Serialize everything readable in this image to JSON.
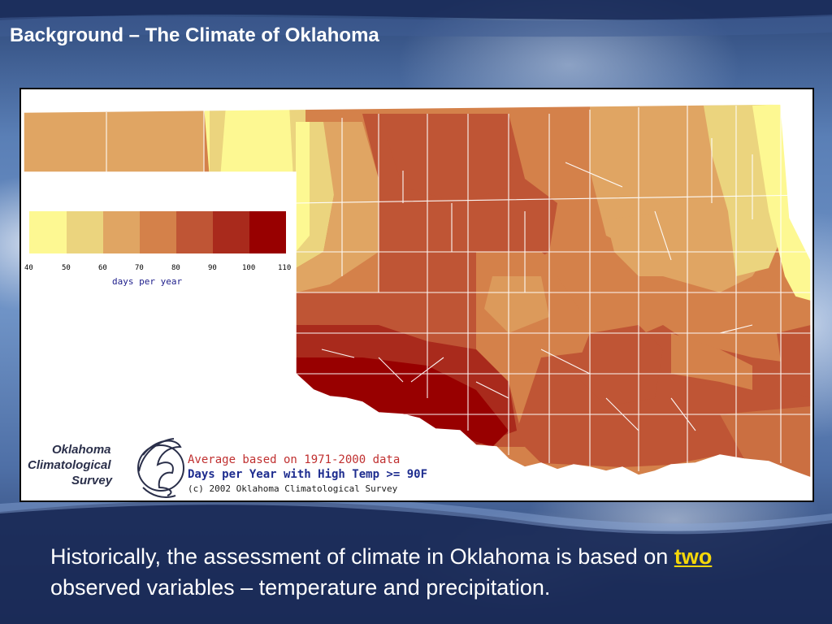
{
  "slide": {
    "title": "Background – The Climate of Oklahoma",
    "body_before": "Historically, the assessment of climate in Oklahoma is based on ",
    "body_highlight": "two",
    "body_after": " observed variables – temperature and precipitation."
  },
  "map": {
    "logo_lines": [
      "Oklahoma",
      "Climatological",
      "Survey"
    ],
    "credit_line1": "Average based on 1971-2000 data",
    "credit_line2": "Days per Year with High Temp >= 90F",
    "credit_line3": "(c) 2002 Oklahoma Climatological Survey",
    "legend": {
      "ticks": [
        "40",
        "50",
        "60",
        "70",
        "80",
        "90",
        "100",
        "110"
      ],
      "unit": "days per year",
      "colors": [
        "#fdf892",
        "#ebd47e",
        "#e0a563",
        "#d4814a",
        "#bf5535",
        "#a92a1c",
        "#980000"
      ]
    },
    "colors": {
      "border": "#0a0a0a",
      "county_lines": "#ffffff",
      "credit_red": "#c03030",
      "credit_blue": "#1e2d8f",
      "credit_black": "#1a1a1a"
    }
  }
}
